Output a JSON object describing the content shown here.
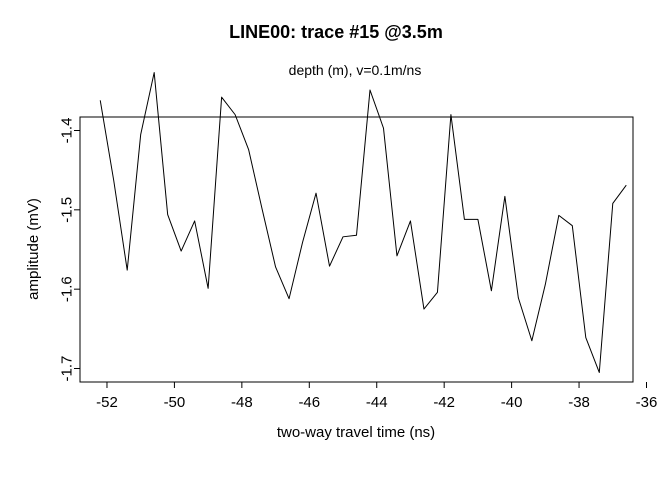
{
  "chart_data": {
    "type": "line",
    "title": "LINE00: trace #15  @3.5m",
    "subtitle": "depth (m),   v=0.1m/ns",
    "xlabel": "two-way travel time (ns)",
    "ylabel": "amplitude (mV)",
    "xlim": [
      -52.8,
      -36.4
    ],
    "ylim": [
      -1.717,
      -1.383
    ],
    "x_reversed": false,
    "grid": false,
    "legend": "none",
    "x_ticks": [
      -52,
      -50,
      -48,
      -46,
      -44,
      -42,
      -40,
      -38,
      -36
    ],
    "y_ticks": [
      -1.4,
      -1.5,
      -1.6,
      -1.7
    ],
    "x_tick_labels": [
      "-52",
      "-50",
      "-48",
      "-46",
      "-44",
      "-42",
      "-40",
      "-38",
      "-36"
    ],
    "y_tick_labels": [
      "-1.4",
      "-1.5",
      "-1.6",
      "-1.7"
    ],
    "line_color": "#000000",
    "series": [
      {
        "x": [
          -52.2,
          -51.8,
          -51.4,
          -51.0,
          -50.6,
          -50.2,
          -49.8,
          -49.4,
          -49.0,
          -48.6,
          -48.2,
          -47.8,
          -47.4,
          -47.0,
          -46.6,
          -46.2,
          -45.8,
          -45.4,
          -45.0,
          -44.6,
          -44.2,
          -43.8,
          -43.4,
          -43.0,
          -42.6,
          -42.2,
          -41.8,
          -41.4,
          -41.0,
          -40.6,
          -40.2,
          -39.8,
          -39.4,
          -39.0,
          -38.6,
          -38.2,
          -37.8,
          -37.4,
          -37.0,
          -36.6
        ],
        "y": [
          -1.362,
          -1.463,
          -1.576,
          -1.405,
          -1.327,
          -1.506,
          -1.552,
          -1.514,
          -1.599,
          -1.358,
          -1.38,
          -1.424,
          -1.499,
          -1.572,
          -1.612,
          -1.541,
          -1.479,
          -1.571,
          -1.534,
          -1.532,
          -1.349,
          -1.397,
          -1.558,
          -1.514,
          -1.625,
          -1.604,
          -1.38,
          -1.512,
          -1.512,
          -1.602,
          -1.483,
          -1.611,
          -1.665,
          -1.594,
          -1.507,
          -1.52,
          -1.661,
          -1.705,
          -1.492,
          -1.469
        ]
      }
    ]
  }
}
